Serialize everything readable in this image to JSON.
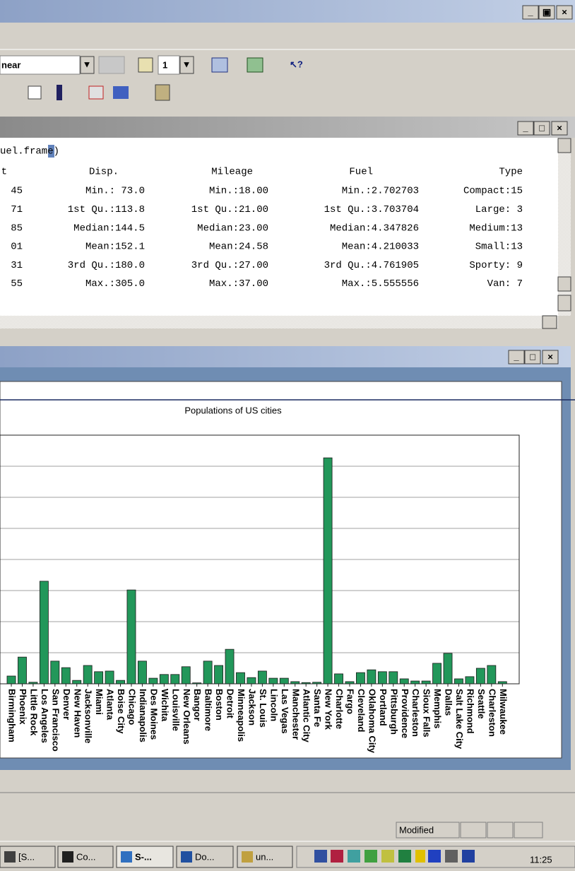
{
  "toolbar": {
    "combo": "near",
    "page_combo": "1"
  },
  "console": {
    "command": "uel.frame)",
    "header": [
      "t",
      "Disp.",
      "Mileage",
      "Fuel",
      "Type"
    ],
    "rows": [
      [
        "45",
        "Min.: 73.0",
        "Min.:18.00",
        "Min.:2.702703",
        "Compact:15"
      ],
      [
        "71",
        "1st Qu.:113.8",
        "1st Qu.:21.00",
        "1st Qu.:3.703704",
        "Large: 3"
      ],
      [
        "85",
        "Median:144.5",
        "Median:23.00",
        "Median:4.347826",
        "Medium:13"
      ],
      [
        "01",
        "Mean:152.1",
        "Mean:24.58",
        "Mean:4.210033",
        "Small:13"
      ],
      [
        "31",
        "3rd Qu.:180.0",
        "3rd Qu.:27.00",
        "3rd Qu.:4.761905",
        "Sporty: 9"
      ],
      [
        "55",
        "Max.:305.0",
        "Max.:37.00",
        "Max.:5.555556",
        "Van: 7"
      ]
    ]
  },
  "chart_data": {
    "type": "bar",
    "title": "Populations of US cities",
    "categories": [
      "Birmingham",
      "Phoenix",
      "Little Rock",
      "Los Angeles",
      "San Francisco",
      "Denver",
      "New Haven",
      "Jacksonville",
      "Miami",
      "Atlanta",
      "Boise City",
      "Chicago",
      "Indianapolis",
      "Des Moines",
      "Wichita",
      "Louisville",
      "New Orleans",
      "Bangor",
      "Baltimore",
      "Boston",
      "Detroit",
      "Minneapolis",
      "Jackson",
      "St. Louis",
      "Lincoln",
      "Las Vegas",
      "Manchester",
      "Atlantic City",
      "Santa Fe",
      "New York",
      "Charlotte",
      "Fargo",
      "Cleveland",
      "Oklahoma City",
      "Portland",
      "Pittsburgh",
      "Providence",
      "Charleston",
      "Sioux Falls",
      "Memphis",
      "Dallas",
      "Salt Lake City",
      "Richmond",
      "Seattle",
      "Charleston",
      "Milwaukee"
    ],
    "values": [
      0.25,
      0.86,
      0.05,
      3.3,
      0.73,
      0.52,
      0.11,
      0.59,
      0.39,
      0.41,
      0.11,
      3.02,
      0.73,
      0.18,
      0.3,
      0.3,
      0.55,
      0.03,
      0.73,
      0.59,
      1.11,
      0.36,
      0.2,
      0.41,
      0.18,
      0.18,
      0.07,
      0.04,
      0.05,
      7.27,
      0.32,
      0.07,
      0.36,
      0.45,
      0.39,
      0.39,
      0.16,
      0.09,
      0.09,
      0.66,
      0.98,
      0.16,
      0.23,
      0.5,
      0.59,
      0.07
    ],
    "color": "#22975a",
    "ylim": [
      0,
      8
    ],
    "yticks": [
      0,
      1,
      2,
      3,
      4,
      5,
      6,
      7,
      8
    ],
    "grid": true
  },
  "status": "Modified",
  "taskbar": {
    "buttons": [
      "[S...",
      "Co...",
      "S-...",
      "Do...",
      "un..."
    ],
    "clock": "11:25"
  }
}
